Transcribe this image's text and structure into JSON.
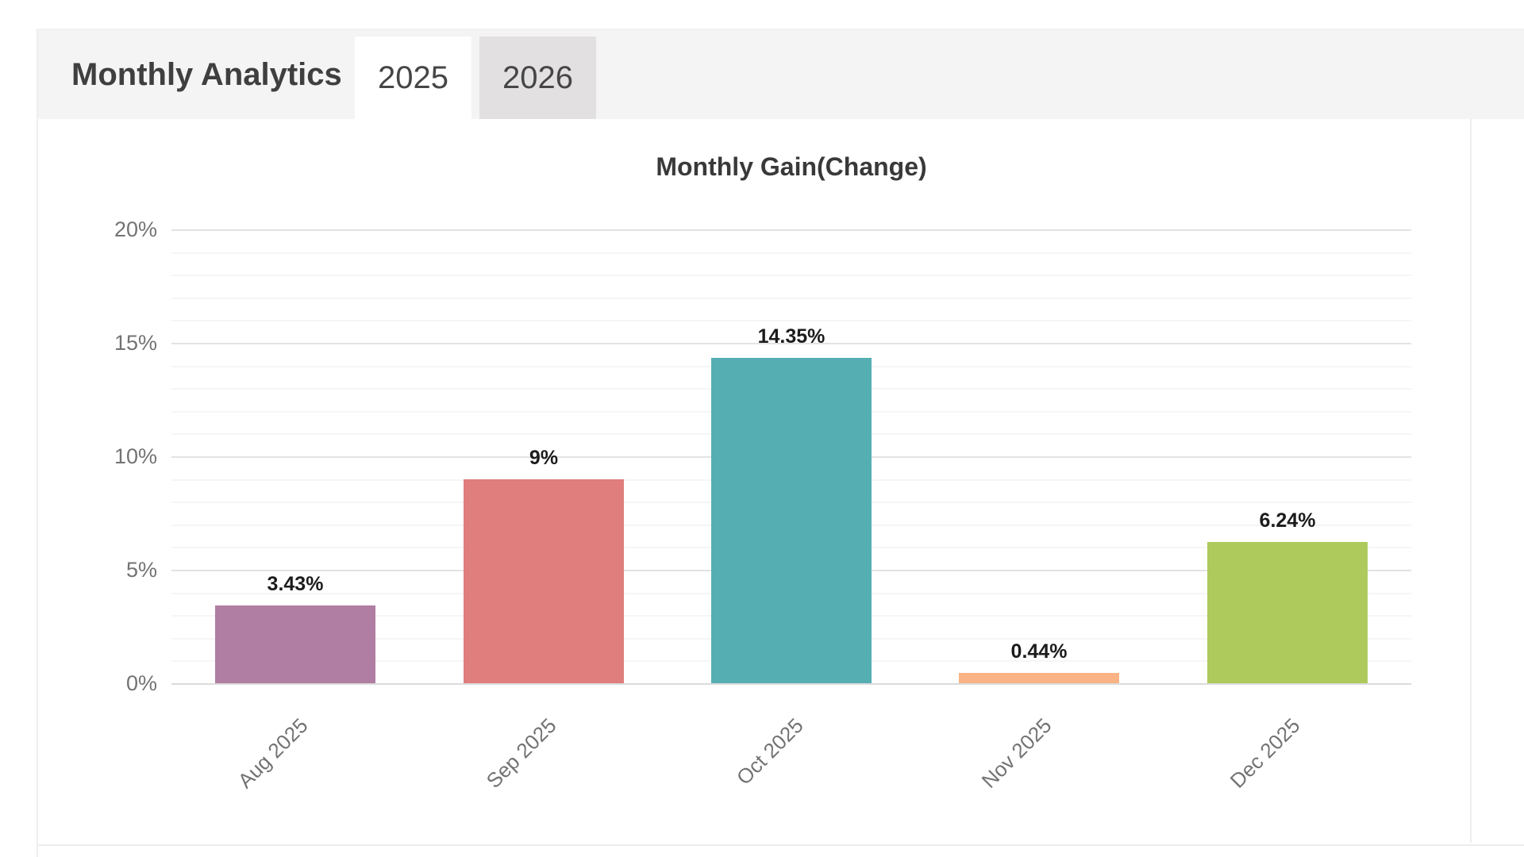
{
  "panel": {
    "header": {
      "title": "Monthly Analytics",
      "tabs": [
        {
          "label": "2025",
          "active": true
        },
        {
          "label": "2026",
          "active": false
        }
      ]
    }
  },
  "chart_data": {
    "type": "bar",
    "title": "Monthly Gain(Change)",
    "categories": [
      "Aug 2025",
      "Sep 2025",
      "Oct 2025",
      "Nov 2025",
      "Dec 2025"
    ],
    "values": [
      3.43,
      9,
      14.35,
      0.44,
      6.24
    ],
    "value_labels": [
      "3.43%",
      "9%",
      "14.35%",
      "0.44%",
      "6.24%"
    ],
    "bar_colors": [
      "#b07da3",
      "#e07e7e",
      "#55afb2",
      "#f9b385",
      "#aeca5c"
    ],
    "xlabel": "",
    "ylabel": "",
    "ylim": [
      0,
      20
    ],
    "y_ticks": [
      {
        "label": "0%",
        "value": 0
      },
      {
        "label": "5%",
        "value": 5
      },
      {
        "label": "10%",
        "value": 10
      },
      {
        "label": "15%",
        "value": 15
      },
      {
        "label": "20%",
        "value": 20
      }
    ],
    "minor_grid_step_pct": 1,
    "grid": true,
    "legend": "none",
    "x_tick_rotation_deg": -45
  },
  "colors": {
    "header_background": "#f5f4f4",
    "active_tab_background": "#ffffff",
    "inactive_tab_background": "#e2e0e0",
    "grid_major": "#e3e3e3",
    "grid_minor": "#f5f5f5",
    "axis_baseline": "#dbdbdb",
    "tick_text": "#737373",
    "value_text": "#1c1c1c",
    "title_text": "#3f3f3f"
  }
}
